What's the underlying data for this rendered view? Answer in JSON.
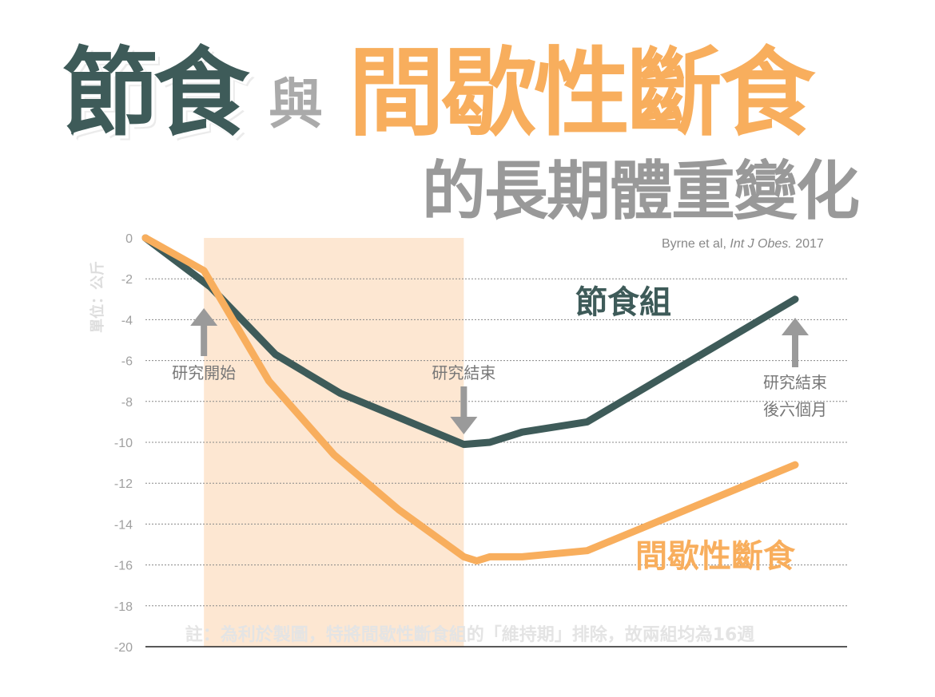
{
  "title": {
    "part1": "節食",
    "connector": "與",
    "part2": "間歇性斷食",
    "subtitle": "的長期體重變化"
  },
  "source": {
    "authors": "Byrne et al, ",
    "journal": "Int J Obes.",
    "year": " 2017"
  },
  "colors": {
    "diet": "#3e5b59",
    "fasting": "#f8ae5d",
    "highlight": "#fde7d2",
    "arrow": "#9a9a9a",
    "axis_text": "#a0a0a0"
  },
  "chart_data": {
    "type": "line",
    "ylabel": "單位：公斤",
    "ylim": [
      -20,
      0
    ],
    "yticks": [
      0,
      -2,
      -4,
      -6,
      -8,
      -10,
      -12,
      -14,
      -16,
      -18,
      -20
    ],
    "grid": true,
    "x_domain": [
      0,
      100
    ],
    "highlight_range": [
      9,
      49
    ],
    "series": [
      {
        "name": "節食組",
        "color": "#3e5b59",
        "points": [
          [
            0,
            0
          ],
          [
            10,
            -2.4
          ],
          [
            20,
            -5.7
          ],
          [
            30,
            -7.6
          ],
          [
            49,
            -10.1
          ],
          [
            53,
            -10.0
          ],
          [
            58,
            -9.5
          ],
          [
            68,
            -9.0
          ],
          [
            100,
            -3.0
          ]
        ]
      },
      {
        "name": "間歇性斷食",
        "color": "#f8ae5d",
        "points": [
          [
            0,
            0
          ],
          [
            9,
            -1.6
          ],
          [
            19,
            -7.0
          ],
          [
            29,
            -10.6
          ],
          [
            39,
            -13.3
          ],
          [
            49,
            -15.6
          ],
          [
            51,
            -15.8
          ],
          [
            53,
            -15.6
          ],
          [
            58,
            -15.6
          ],
          [
            68,
            -15.3
          ],
          [
            100,
            -11.1
          ]
        ]
      }
    ],
    "annotations": [
      {
        "text": "研究開始",
        "x": 9,
        "arrow": "up"
      },
      {
        "text": "研究結束",
        "x": 49,
        "arrow": "down"
      },
      {
        "text": "研究結束",
        "text2": "後六個月",
        "x": 100,
        "arrow": "up"
      }
    ],
    "note": "註：為利於製圖，特將間歇性斷食組的「維持期」排除，故兩組均為16週"
  }
}
